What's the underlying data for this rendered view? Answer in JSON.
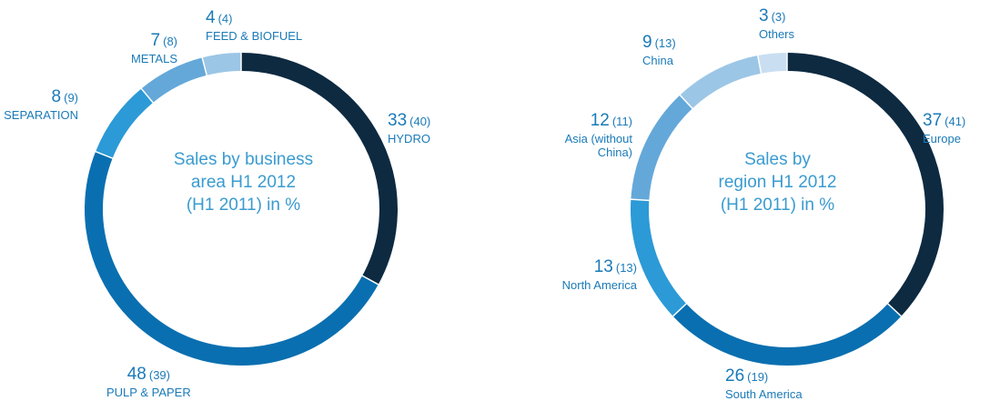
{
  "chart_data": [
    {
      "type": "pie",
      "style": "donut",
      "title": "Sales by business area H1 2012 (H1 2011) in %",
      "title_lines": [
        "Sales by business",
        "area H1 2012",
        "(H1 2011) in %"
      ],
      "slices": [
        {
          "label": "HYDRO",
          "value": 33,
          "previous": 40,
          "color": "#0d2a41"
        },
        {
          "label": "PULP & PAPER",
          "value": 48,
          "previous": 39,
          "color": "#0a6fb0"
        },
        {
          "label": "SEPARATION",
          "value": 8,
          "previous": 9,
          "color": "#2c9ad6"
        },
        {
          "label": "METALS",
          "value": 7,
          "previous": 8,
          "color": "#64a8d9"
        },
        {
          "label": "FEED & BIOFUEL",
          "value": 4,
          "previous": 4,
          "color": "#9cc6e6"
        }
      ]
    },
    {
      "type": "pie",
      "style": "donut",
      "title": "Sales by region H1 2012 (H1 2011) in %",
      "title_lines": [
        "Sales by",
        "region H1 2012",
        "(H1 2011) in %"
      ],
      "slices": [
        {
          "label": "Europe",
          "value": 37,
          "previous": 41,
          "color": "#0d2a41"
        },
        {
          "label": "South America",
          "value": 26,
          "previous": 19,
          "color": "#0a6fb0"
        },
        {
          "label": "North America",
          "value": 13,
          "previous": 13,
          "color": "#2c9ad6"
        },
        {
          "label": "Asia (without China)",
          "label_lines": [
            "Asia (without",
            "China)"
          ],
          "value": 12,
          "previous": 11,
          "color": "#64a8d9"
        },
        {
          "label": "China",
          "value": 9,
          "previous": 13,
          "color": "#9cc6e6"
        },
        {
          "label": "Others",
          "value": 3,
          "previous": 3,
          "color": "#c9def1"
        }
      ]
    }
  ]
}
